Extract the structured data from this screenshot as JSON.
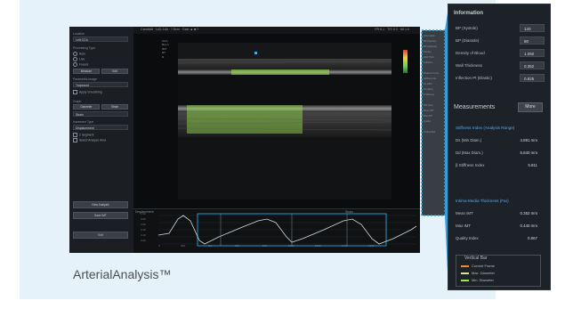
{
  "caption": "ArterialAnalysis™",
  "colors": {
    "card_bg": "#e6f2fa",
    "accent_dotted": "#2aa7e0",
    "info_panel_bg": "#1c2228",
    "highlight_blue": "#5ea6e6",
    "overlay_green": "#9be84a"
  },
  "left_panel": {
    "location_label": "Location",
    "location_value": "Left CCA",
    "processing_type_label": "Processing Type",
    "processing_options": [
      "Auto",
      "Live",
      "Freeze"
    ],
    "buttons_row1": [
      "Measure",
      "Edit"
    ],
    "parametric_label": "Parametric Image",
    "parametric_value": "Trapezoid",
    "auto_record": "Apply Smoothing",
    "graph_label": "Graph",
    "graph_buttons": [
      "Diameter",
      "Strain"
    ],
    "graph_select": "Strain",
    "increment_label": "Increment Type",
    "increment_value": "Displacement",
    "checks": [
      "2 Segment",
      "Select Analyze Area"
    ],
    "bottom_buttons": [
      "New Analysis",
      "Save IMT",
      "Exit"
    ]
  },
  "header": {
    "text": "CarotidA · LA2-14A · 7.5cm · Gain ▲ ■ ?",
    "right_text": "FR 8.1 · TIS 0.3 · MI 1.0"
  },
  "image_overlay": {
    "labels": [
      "CCA",
      "Rec.1",
      "IMT",
      "RT",
      "D"
    ]
  },
  "graph": {
    "title_left": "Displacement",
    "title_right": "Strain",
    "y_ticks": [
      "0.00",
      "0.20",
      "0.40",
      "0.60",
      "0.80",
      "1.00"
    ],
    "x_ticks": [
      "0",
      "200",
      "400",
      "600",
      "800",
      "1000",
      "1200",
      "1400",
      "1600"
    ]
  },
  "info_panel": {
    "information_title": "Information",
    "information_rows": [
      {
        "label": "BP (Systole)",
        "value": "120"
      },
      {
        "label": "BP (Diastole)",
        "value": "80"
      },
      {
        "label": "Density of Blood",
        "value": "1.050"
      },
      {
        "label": "Wall Thickness",
        "value": "0.352"
      },
      {
        "label": "Inflection Pt (Elastic)",
        "value": "0.925"
      }
    ],
    "measurements_title": "Measurements",
    "more_button": "More",
    "stiffness_title": "Stiffness Index (Analysis Range)",
    "stiffness_rows": [
      {
        "label": "Ds (Min Diam.)",
        "value": "4.891 mm"
      },
      {
        "label": "Dd (Max Diam.)",
        "value": "5.840 mm"
      },
      {
        "label": "β Stiffness Index",
        "value": "5.811"
      }
    ],
    "imt_title": "Intima-Media Thickness (Far)",
    "imt_rows": [
      {
        "label": "Mean IMT",
        "value": "0.352 mm"
      },
      {
        "label": "Max IMT",
        "value": "0.440 mm"
      },
      {
        "label": "Quality Index",
        "value": "0.867"
      }
    ],
    "vertical_bar_title": "Vertical Bar",
    "vertical_bar_items": [
      {
        "label": "Current Frame",
        "color": "#f08a2a"
      },
      {
        "label": "Max. Diameter",
        "color": "#d8e0a0"
      },
      {
        "label": "Min. Diameter",
        "color": "#9be84a"
      }
    ]
  },
  "side_strip_labels": [
    "Information",
    "BP (Systole)",
    "BP (Diastole)",
    "Density",
    "Wall Thick.",
    "Inflection",
    "Measurements",
    "Stiffness Idx",
    "Ds (Min)",
    "Dd (Max)",
    "β Stiffness",
    "IMT (Far)",
    "Mean IMT",
    "Max IMT",
    "Quality",
    "Vertical Bar"
  ]
}
